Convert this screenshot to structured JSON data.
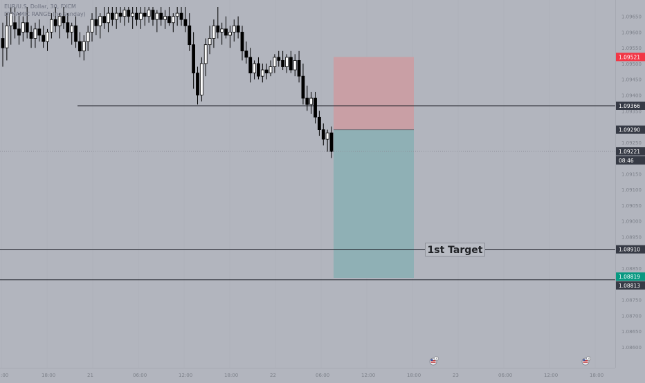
{
  "header": {
    "line1": "EUR/U.S. Dollar, 30, FXCM",
    "line2": "DYNAMIC RANGE (no sunday)"
  },
  "annotations": {
    "target_label": "1st Target"
  },
  "price_axis": {
    "ticks": [
      "1.09650",
      "1.09600",
      "1.09550",
      "1.09500",
      "1.09450",
      "1.09400",
      "1.09350",
      "1.09250",
      "1.09150",
      "1.09100",
      "1.09050",
      "1.09000",
      "1.08950",
      "1.08850",
      "1.08750",
      "1.08700",
      "1.08650",
      "1.08600"
    ],
    "badges": [
      {
        "name": "price-badge-stop",
        "value": "1.09521",
        "color": "#f23645"
      },
      {
        "name": "price-badge-line-upper",
        "value": "1.09366",
        "color": "#363a45"
      },
      {
        "name": "price-badge-entry",
        "value": "1.09290",
        "color": "#363a45"
      },
      {
        "name": "price-badge-current",
        "value": "1.09221",
        "color": "#363a45"
      },
      {
        "name": "price-badge-countdown",
        "value": "08:46",
        "color": "#363a45"
      },
      {
        "name": "price-badge-target1",
        "value": "1.08910",
        "color": "#363a45"
      },
      {
        "name": "price-badge-tp",
        "value": "1.08819",
        "color": "#089981"
      },
      {
        "name": "price-badge-line-lower",
        "value": "1.08813",
        "color": "#363a45"
      }
    ]
  },
  "time_axis": {
    "labels": [
      ":00",
      "18:00",
      "21",
      "06:00",
      "12:00",
      "18:00",
      "22",
      "06:00",
      "12:00",
      "18:00",
      "23",
      "06:00",
      "12:00",
      "18:00"
    ]
  },
  "events": [
    {
      "name": "us-flag-event-1-icon",
      "count": "3"
    },
    {
      "name": "us-flag-event-2-icon",
      "count": "3"
    }
  ],
  "colors": {
    "background": "#b2b5be",
    "bull": "#ffffff",
    "bear": "#000000",
    "risk_zone": "#c99fa5",
    "reward_zone": "#8fb0b5"
  },
  "chart_data": {
    "type": "candlestick",
    "symbol": "EUR/U.S. Dollar",
    "timeframe": "30",
    "exchange": "FXCM",
    "ylim": [
      1.0856,
      1.0968
    ],
    "current_price": 1.09221,
    "horizontal_lines": [
      1.09366,
      1.0891,
      1.08813
    ],
    "position": {
      "type": "short",
      "entry": 1.0929,
      "stop": 1.09521,
      "target": 1.08819
    },
    "candles": [
      {
        "o": 1.0958,
        "h": 1.0963,
        "l": 1.0949,
        "c": 1.0955
      },
      {
        "o": 1.0955,
        "h": 1.0966,
        "l": 1.0951,
        "c": 1.0962
      },
      {
        "o": 1.0962,
        "h": 1.0968,
        "l": 1.0956,
        "c": 1.0966
      },
      {
        "o": 1.0963,
        "h": 1.0968,
        "l": 1.0958,
        "c": 1.0961
      },
      {
        "o": 1.0961,
        "h": 1.0966,
        "l": 1.0956,
        "c": 1.0959
      },
      {
        "o": 1.096,
        "h": 1.0965,
        "l": 1.0957,
        "c": 1.0963
      },
      {
        "o": 1.0963,
        "h": 1.0968,
        "l": 1.0958,
        "c": 1.096
      },
      {
        "o": 1.096,
        "h": 1.0962,
        "l": 1.0955,
        "c": 1.0958
      },
      {
        "o": 1.0958,
        "h": 1.0963,
        "l": 1.0955,
        "c": 1.0961
      },
      {
        "o": 1.0961,
        "h": 1.0964,
        "l": 1.0957,
        "c": 1.0959
      },
      {
        "o": 1.0959,
        "h": 1.0962,
        "l": 1.0955,
        "c": 1.0957
      },
      {
        "o": 1.0957,
        "h": 1.0961,
        "l": 1.0954,
        "c": 1.096
      },
      {
        "o": 1.096,
        "h": 1.0966,
        "l": 1.0958,
        "c": 1.0964
      },
      {
        "o": 1.0964,
        "h": 1.0968,
        "l": 1.096,
        "c": 1.0962
      },
      {
        "o": 1.0962,
        "h": 1.0966,
        "l": 1.0958,
        "c": 1.0965
      },
      {
        "o": 1.0965,
        "h": 1.0968,
        "l": 1.0961,
        "c": 1.0963
      },
      {
        "o": 1.0963,
        "h": 1.0966,
        "l": 1.0958,
        "c": 1.096
      },
      {
        "o": 1.096,
        "h": 1.0963,
        "l": 1.0956,
        "c": 1.0962
      },
      {
        "o": 1.0962,
        "h": 1.0965,
        "l": 1.0955,
        "c": 1.0957
      },
      {
        "o": 1.0957,
        "h": 1.096,
        "l": 1.0952,
        "c": 1.0954
      },
      {
        "o": 1.0954,
        "h": 1.0959,
        "l": 1.0951,
        "c": 1.0957
      },
      {
        "o": 1.0957,
        "h": 1.0962,
        "l": 1.0954,
        "c": 1.096
      },
      {
        "o": 1.096,
        "h": 1.0966,
        "l": 1.0957,
        "c": 1.0964
      },
      {
        "o": 1.0964,
        "h": 1.0968,
        "l": 1.0959,
        "c": 1.0962
      },
      {
        "o": 1.0962,
        "h": 1.0966,
        "l": 1.0958,
        "c": 1.0965
      },
      {
        "o": 1.0965,
        "h": 1.0968,
        "l": 1.0961,
        "c": 1.0963
      },
      {
        "o": 1.0963,
        "h": 1.0968,
        "l": 1.096,
        "c": 1.0966
      },
      {
        "o": 1.0966,
        "h": 1.0968,
        "l": 1.0962,
        "c": 1.0964
      },
      {
        "o": 1.0964,
        "h": 1.0968,
        "l": 1.0961,
        "c": 1.0966
      },
      {
        "o": 1.0966,
        "h": 1.0968,
        "l": 1.0963,
        "c": 1.0965
      },
      {
        "o": 1.0965,
        "h": 1.0968,
        "l": 1.0962,
        "c": 1.0967
      },
      {
        "o": 1.0967,
        "h": 1.0968,
        "l": 1.0963,
        "c": 1.0965
      },
      {
        "o": 1.0965,
        "h": 1.0968,
        "l": 1.0961,
        "c": 1.0966
      },
      {
        "o": 1.0966,
        "h": 1.0968,
        "l": 1.0962,
        "c": 1.0964
      },
      {
        "o": 1.0964,
        "h": 1.0968,
        "l": 1.0961,
        "c": 1.0966
      },
      {
        "o": 1.0966,
        "h": 1.0968,
        "l": 1.0962,
        "c": 1.0965
      },
      {
        "o": 1.0965,
        "h": 1.0968,
        "l": 1.0963,
        "c": 1.0967
      },
      {
        "o": 1.0967,
        "h": 1.0968,
        "l": 1.0962,
        "c": 1.0964
      },
      {
        "o": 1.0964,
        "h": 1.0967,
        "l": 1.096,
        "c": 1.0966
      },
      {
        "o": 1.0966,
        "h": 1.0968,
        "l": 1.0962,
        "c": 1.0964
      },
      {
        "o": 1.0964,
        "h": 1.0967,
        "l": 1.0961,
        "c": 1.0965
      },
      {
        "o": 1.0965,
        "h": 1.0968,
        "l": 1.0962,
        "c": 1.0963
      },
      {
        "o": 1.0963,
        "h": 1.0966,
        "l": 1.096,
        "c": 1.0965
      },
      {
        "o": 1.0965,
        "h": 1.0968,
        "l": 1.0962,
        "c": 1.0966
      },
      {
        "o": 1.0966,
        "h": 1.0968,
        "l": 1.0962,
        "c": 1.0964
      },
      {
        "o": 1.0964,
        "h": 1.0968,
        "l": 1.096,
        "c": 1.0962
      },
      {
        "o": 1.0962,
        "h": 1.0966,
        "l": 1.0954,
        "c": 1.0956
      },
      {
        "o": 1.0956,
        "h": 1.096,
        "l": 1.0942,
        "c": 1.0947
      },
      {
        "o": 1.0947,
        "h": 1.0949,
        "l": 1.0937,
        "c": 1.094
      },
      {
        "o": 1.094,
        "h": 1.0952,
        "l": 1.0938,
        "c": 1.095
      },
      {
        "o": 1.095,
        "h": 1.0958,
        "l": 1.0946,
        "c": 1.0956
      },
      {
        "o": 1.0956,
        "h": 1.0962,
        "l": 1.0953,
        "c": 1.0958
      },
      {
        "o": 1.0958,
        "h": 1.0964,
        "l": 1.0955,
        "c": 1.0962
      },
      {
        "o": 1.0962,
        "h": 1.0968,
        "l": 1.0958,
        "c": 1.096
      },
      {
        "o": 1.096,
        "h": 1.0963,
        "l": 1.0956,
        "c": 1.0961
      },
      {
        "o": 1.0961,
        "h": 1.0965,
        "l": 1.0958,
        "c": 1.0959
      },
      {
        "o": 1.0959,
        "h": 1.0962,
        "l": 1.0955,
        "c": 1.096
      },
      {
        "o": 1.096,
        "h": 1.0964,
        "l": 1.0957,
        "c": 1.0962
      },
      {
        "o": 1.0962,
        "h": 1.0965,
        "l": 1.0958,
        "c": 1.096
      },
      {
        "o": 1.096,
        "h": 1.0962,
        "l": 1.0951,
        "c": 1.0954
      },
      {
        "o": 1.0954,
        "h": 1.0957,
        "l": 1.095,
        "c": 1.0952
      },
      {
        "o": 1.0952,
        "h": 1.0955,
        "l": 1.0944,
        "c": 1.0947
      },
      {
        "o": 1.0947,
        "h": 1.0951,
        "l": 1.0945,
        "c": 1.095
      },
      {
        "o": 1.095,
        "h": 1.0952,
        "l": 1.0945,
        "c": 1.0946
      },
      {
        "o": 1.0946,
        "h": 1.095,
        "l": 1.0944,
        "c": 1.0948
      },
      {
        "o": 1.0948,
        "h": 1.095,
        "l": 1.0945,
        "c": 1.0947
      },
      {
        "o": 1.0947,
        "h": 1.0951,
        "l": 1.0946,
        "c": 1.0949
      },
      {
        "o": 1.0949,
        "h": 1.0953,
        "l": 1.0947,
        "c": 1.0952
      },
      {
        "o": 1.0952,
        "h": 1.0954,
        "l": 1.0949,
        "c": 1.0951
      },
      {
        "o": 1.0951,
        "h": 1.0954,
        "l": 1.0948,
        "c": 1.0949
      },
      {
        "o": 1.0949,
        "h": 1.0953,
        "l": 1.0947,
        "c": 1.0952
      },
      {
        "o": 1.0952,
        "h": 1.0954,
        "l": 1.0947,
        "c": 1.0948
      },
      {
        "o": 1.0948,
        "h": 1.0953,
        "l": 1.0946,
        "c": 1.0951
      },
      {
        "o": 1.0951,
        "h": 1.0954,
        "l": 1.0944,
        "c": 1.0946
      },
      {
        "o": 1.0946,
        "h": 1.095,
        "l": 1.0937,
        "c": 1.0939
      },
      {
        "o": 1.0939,
        "h": 1.0943,
        "l": 1.0935,
        "c": 1.0937
      },
      {
        "o": 1.0937,
        "h": 1.0941,
        "l": 1.0934,
        "c": 1.0939
      },
      {
        "o": 1.0939,
        "h": 1.0941,
        "l": 1.0931,
        "c": 1.0933
      },
      {
        "o": 1.0933,
        "h": 1.0935,
        "l": 1.0927,
        "c": 1.0929
      },
      {
        "o": 1.0929,
        "h": 1.0931,
        "l": 1.0924,
        "c": 1.0926
      },
      {
        "o": 1.0926,
        "h": 1.0929,
        "l": 1.0922,
        "c": 1.0928
      },
      {
        "o": 1.0928,
        "h": 1.093,
        "l": 1.092,
        "c": 1.0922
      }
    ]
  }
}
